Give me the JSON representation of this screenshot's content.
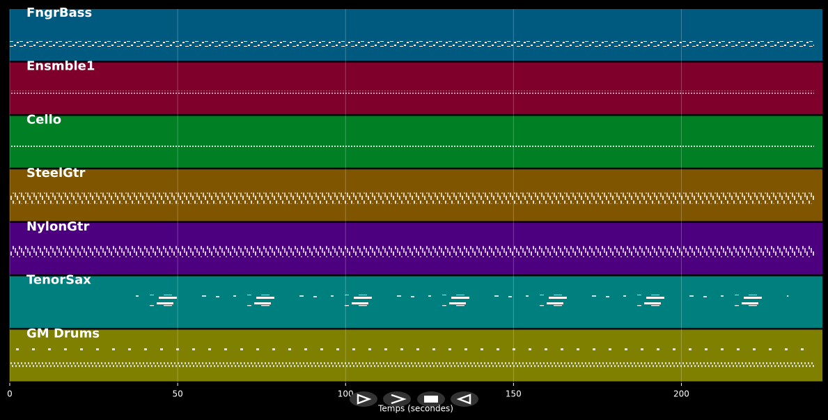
{
  "chart_data": {
    "type": "track-roll",
    "x_label": "Temps (secondes)",
    "xlim": [
      0,
      242
    ],
    "xticks": [
      0,
      50,
      100,
      150,
      200
    ],
    "grid": true,
    "background": "#000000",
    "tracks": [
      {
        "name": "FngrBass",
        "color": "#005a80"
      },
      {
        "name": "Ensmble1",
        "color": "#7f002a"
      },
      {
        "name": "Cello",
        "color": "#007f24"
      },
      {
        "name": "SteelGtr",
        "color": "#7f5500"
      },
      {
        "name": "NylonGtr",
        "color": "#4c007f"
      },
      {
        "name": "TenorSax",
        "color": "#007f7f"
      },
      {
        "name": "GM Drums",
        "color": "#7f7f00"
      }
    ]
  }
}
